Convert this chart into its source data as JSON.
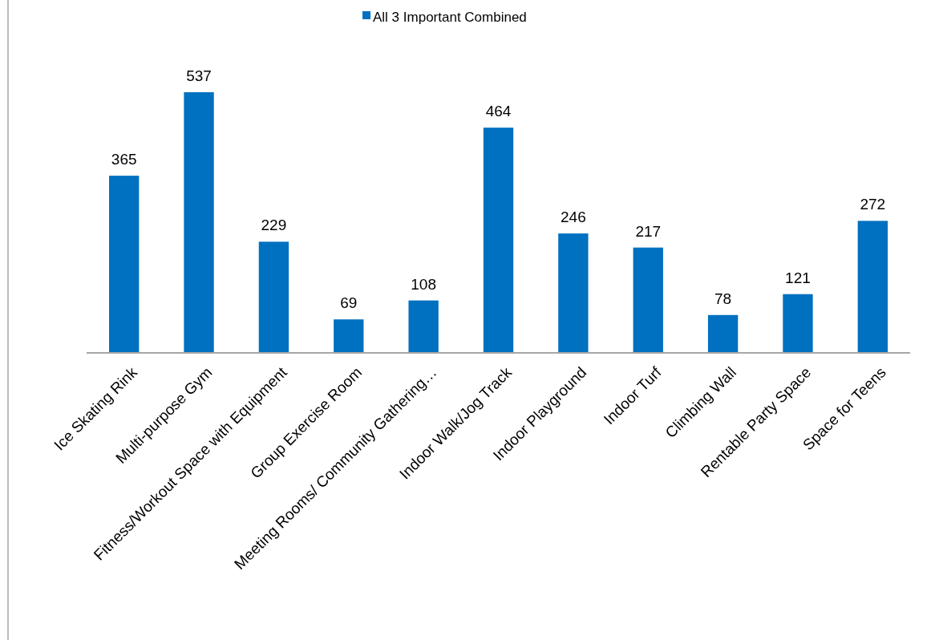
{
  "chart_data": {
    "type": "bar",
    "categories": [
      "Ice Skating Rink",
      "Multi-purpose Gym",
      "Fitness/Workout Space with Equipment",
      "Group Exercise Room",
      "Meeting Rooms/ Community Gathering…",
      "Indoor Walk/Jog Track",
      "Indoor Playground",
      "Indoor Turf",
      "Climbing Wall",
      "Rentable Party Space",
      "Space for Teens"
    ],
    "series": [
      {
        "name": "All 3 Important Combined",
        "color": "#0070c0",
        "values": [
          365,
          537,
          229,
          69,
          108,
          464,
          246,
          217,
          78,
          121,
          272
        ]
      }
    ],
    "data_labels": true,
    "legend": "top"
  }
}
